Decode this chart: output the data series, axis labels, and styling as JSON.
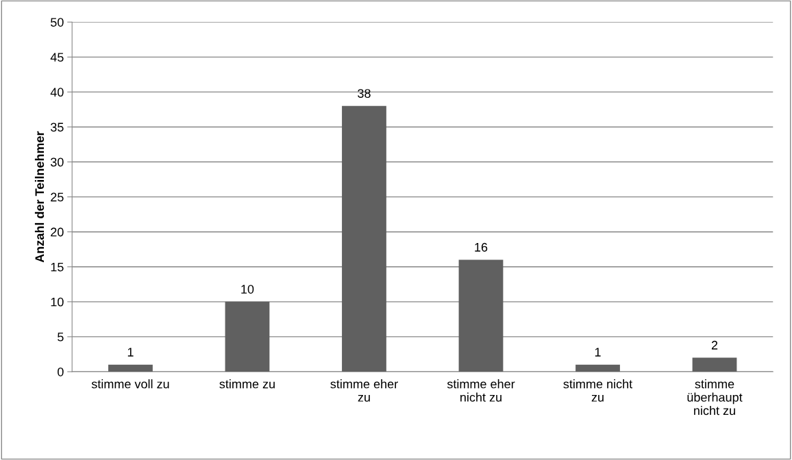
{
  "chart_data": {
    "type": "bar",
    "ylabel": "Anzahl der Teilnehmer",
    "categories": [
      "stimme voll zu",
      "stimme zu",
      "stimme eher\nzu",
      "stimme eher\nnicht zu",
      "stimme nicht\nzu",
      "stimme\nüberhaupt\nnicht zu"
    ],
    "values": [
      1,
      10,
      38,
      16,
      1,
      2
    ],
    "color": "#606060",
    "ylim": [
      0,
      50
    ],
    "yticks": [
      0,
      5,
      10,
      15,
      20,
      25,
      30,
      35,
      40,
      45,
      50
    ],
    "grid": "y",
    "data_labels": true,
    "legend": false
  }
}
